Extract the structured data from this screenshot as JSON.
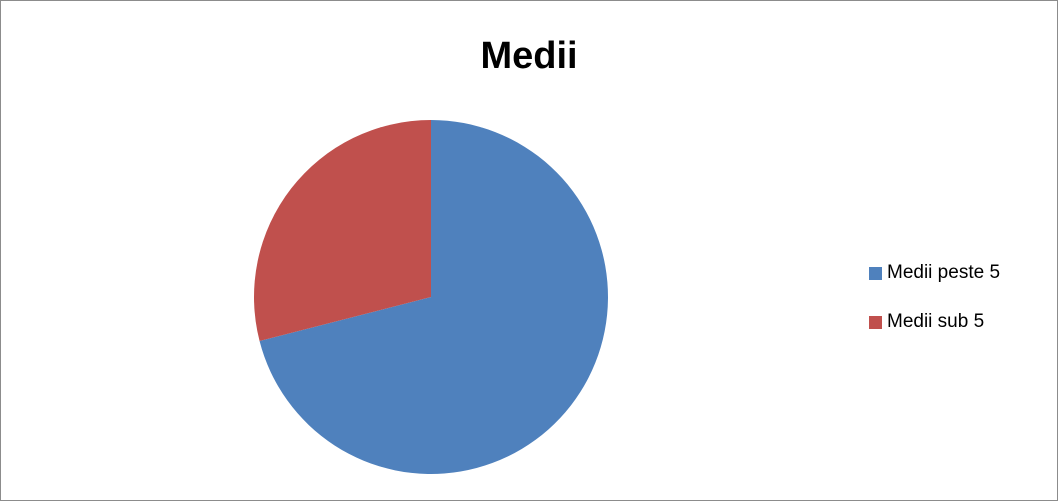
{
  "chart_data": {
    "type": "pie",
    "title": "Medii",
    "categories": [
      "Medii peste 5",
      "Medii sub 5"
    ],
    "values": [
      71,
      29
    ],
    "colors": [
      "#4F81BD",
      "#C0504D"
    ],
    "start_angle_deg": 0,
    "direction": "clockwise",
    "legend": "right"
  }
}
